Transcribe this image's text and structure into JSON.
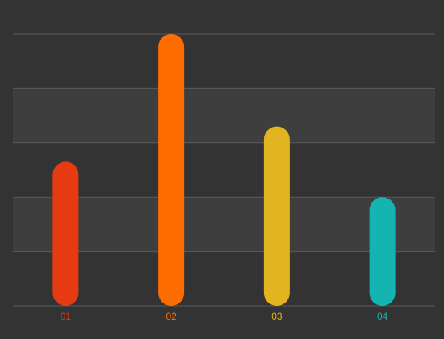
{
  "chart_data": {
    "type": "bar",
    "categories": [
      "01",
      "02",
      "03",
      "04"
    ],
    "values": [
      53,
      100,
      66,
      40
    ],
    "colors": [
      "#e63a12",
      "#ff6c00",
      "#e2b41f",
      "#14b5b0"
    ],
    "ylim": [
      0,
      100
    ],
    "yticks": [
      0,
      20,
      40,
      60,
      80,
      100
    ],
    "grid": true
  }
}
